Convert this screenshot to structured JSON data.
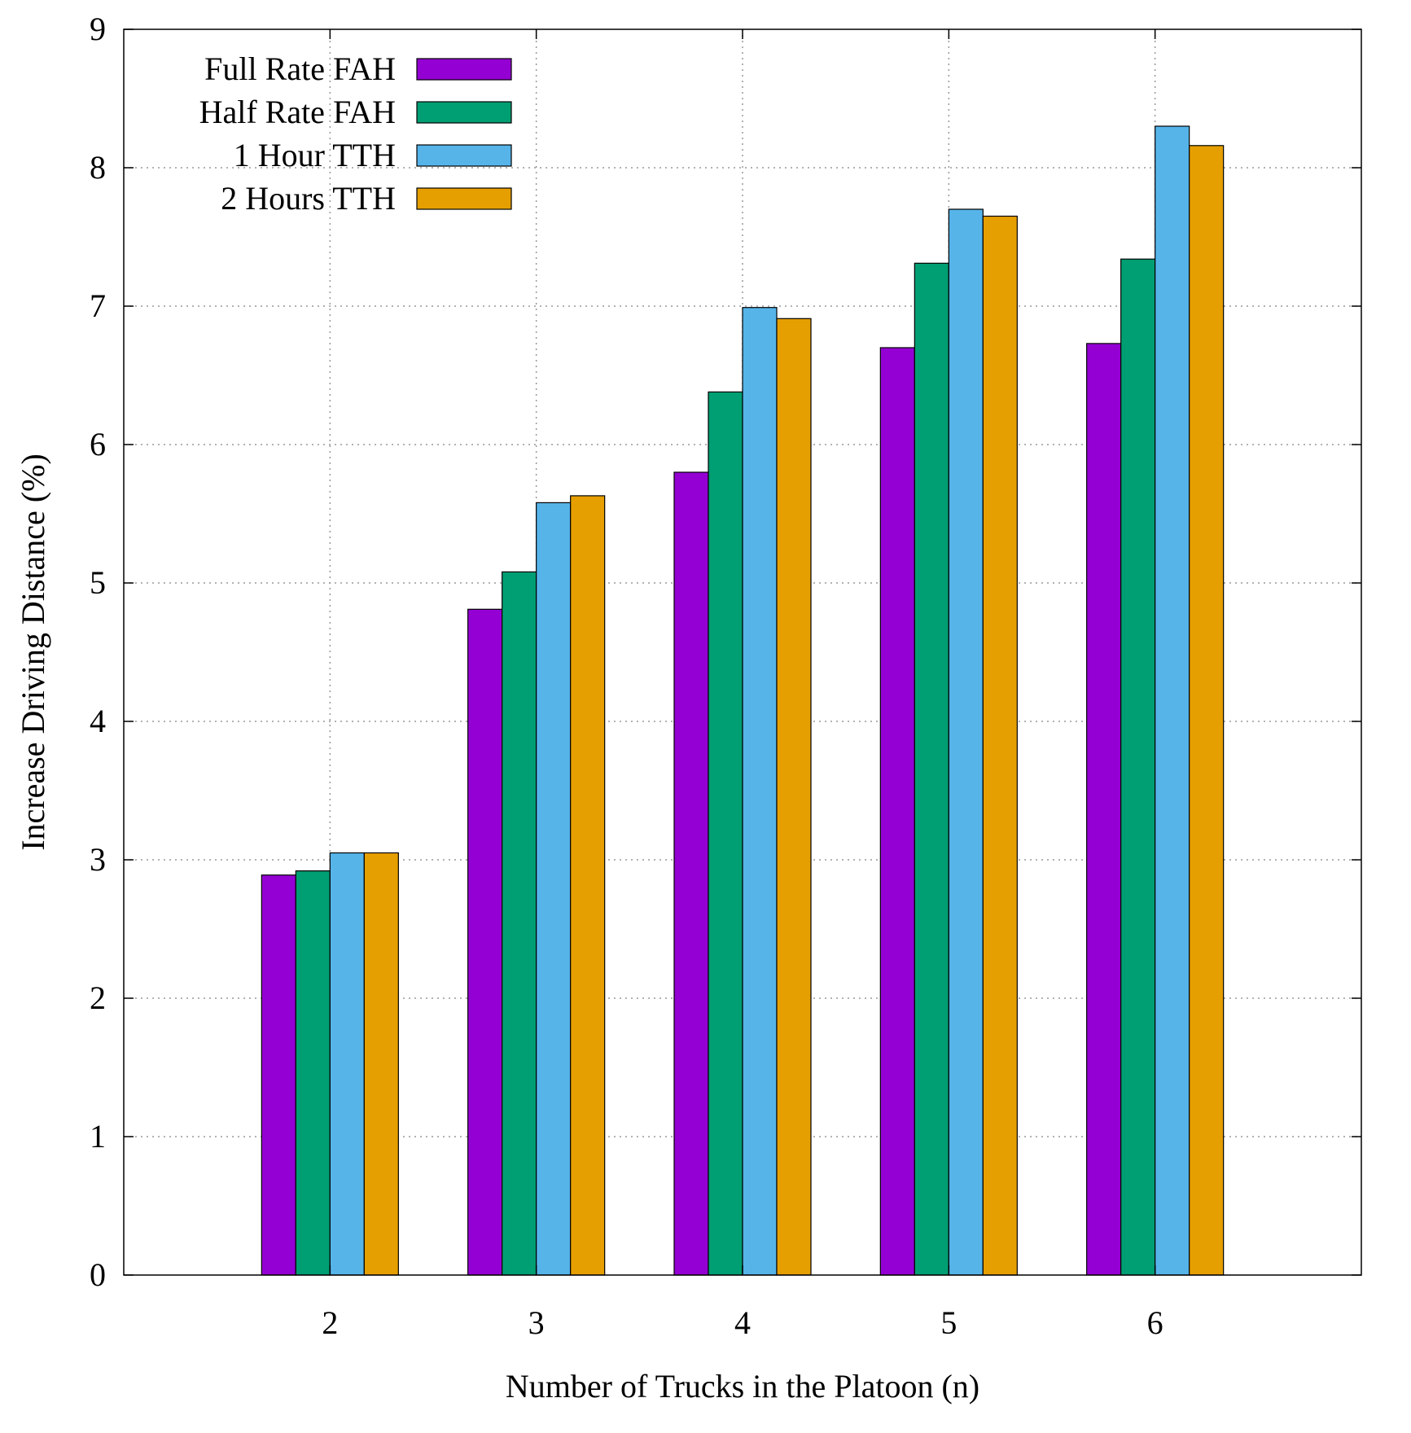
{
  "chart_data": {
    "type": "bar",
    "title": "",
    "xlabel": "Number of Trucks in the Platoon (n)",
    "ylabel": "Increase Driving Distance (%)",
    "ylim": [
      0,
      9
    ],
    "yticks": [
      0,
      1,
      2,
      3,
      4,
      5,
      6,
      7,
      8,
      9
    ],
    "grid": true,
    "legend_position": "top-left",
    "categories": [
      "2",
      "3",
      "4",
      "5",
      "6"
    ],
    "series": [
      {
        "name": "Full Rate FAH",
        "color": "#9400d3",
        "values": [
          2.89,
          4.81,
          5.8,
          6.7,
          6.73
        ]
      },
      {
        "name": "Half Rate FAH",
        "color": "#009e73",
        "values": [
          2.92,
          5.08,
          6.38,
          7.31,
          7.34
        ]
      },
      {
        "name": "1 Hour TTH",
        "color": "#56b4e9",
        "values": [
          3.05,
          5.58,
          6.99,
          7.7,
          8.3
        ]
      },
      {
        "name": "2 Hours TTH",
        "color": "#e69f00",
        "values": [
          3.05,
          5.63,
          6.91,
          7.65,
          8.16
        ]
      }
    ]
  }
}
